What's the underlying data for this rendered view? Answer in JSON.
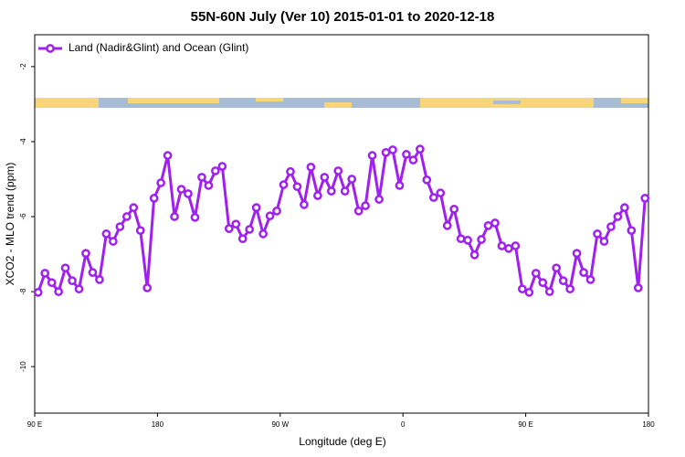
{
  "chart_data": {
    "type": "line",
    "title": "55N-60N July (Ver 10)   2015-01-01 to 2020-12-18",
    "x_label": "Longitude (deg E)",
    "y_label": "XCO2 - MLO trend (ppm)",
    "x": [
      92.5,
      97.5,
      102.5,
      107.5,
      112.5,
      117.5,
      122.5,
      127.5,
      132.5,
      137.5,
      142.5,
      147.5,
      152.5,
      157.5,
      162.5,
      167.5,
      172.5,
      177.5,
      182.5,
      187.5,
      192.5,
      197.5,
      202.5,
      207.5,
      212.5,
      217.5,
      222.5,
      227.5,
      232.5,
      237.5,
      242.5,
      247.5,
      252.5,
      257.5,
      262.5,
      267.5,
      272.5,
      277.5,
      282.5,
      287.5,
      292.5,
      297.5,
      302.5,
      307.5,
      312.5,
      317.5,
      322.5,
      327.5,
      332.5,
      337.5,
      342.5,
      347.5,
      352.5,
      357.5,
      362.5,
      367.5,
      372.5,
      377.5,
      382.5,
      387.5,
      392.5,
      397.5,
      402.5,
      407.5,
      412.5,
      417.5,
      422.5,
      427.5,
      432.5,
      437.5,
      442.5,
      447.5,
      452.5,
      457.5,
      462.5,
      467.5,
      472.5,
      477.5,
      482.5,
      487.5,
      492.5,
      497.5,
      502.5,
      507.5,
      512.5,
      517.5,
      522.5,
      527.5,
      532.5,
      537.5
    ],
    "series": [
      {
        "name": "Land (Nadir&Glint) and Ocean (Glint)",
        "color": "#a020f0",
        "values": [
          -8.02,
          -7.51,
          -7.76,
          -8.0,
          -7.37,
          -7.71,
          -7.93,
          -6.98,
          -7.49,
          -7.68,
          -6.46,
          -6.66,
          -6.27,
          -6.0,
          -5.76,
          -6.37,
          -7.9,
          -5.51,
          -5.1,
          -4.37,
          -6.0,
          -5.27,
          -5.39,
          -6.02,
          -4.95,
          -5.17,
          -4.78,
          -4.66,
          -6.32,
          -6.2,
          -6.59,
          -6.34,
          -5.76,
          -6.46,
          -5.98,
          -5.85,
          -5.15,
          -4.8,
          -5.2,
          -5.68,
          -4.68,
          -5.44,
          -4.95,
          -5.32,
          -4.78,
          -5.32,
          -5.0,
          -5.85,
          -5.71,
          -4.37,
          -5.54,
          -4.29,
          -4.22,
          -5.17,
          -4.34,
          -4.49,
          -4.2,
          -5.02,
          -5.49,
          -5.37,
          -6.24,
          -5.8,
          -6.59,
          -6.63,
          -7.02,
          -6.61,
          -6.24,
          -6.17,
          -6.78,
          -6.85,
          -6.78,
          -7.93,
          -8.02,
          -7.51,
          -7.76,
          -8.0,
          -7.37,
          -7.71,
          -7.93,
          -6.98,
          -7.49,
          -7.68,
          -6.46,
          -6.66,
          -6.27,
          -6.0,
          -5.76,
          -6.37,
          -7.9,
          -5.51
        ]
      }
    ],
    "xlim": [
      90,
      540
    ],
    "xticks": [
      {
        "value": 90,
        "label": "90 E"
      },
      {
        "value": 180,
        "label": "180"
      },
      {
        "value": 270,
        "label": "90 W"
      },
      {
        "value": 360,
        "label": "0"
      },
      {
        "value": 450,
        "label": "90 E"
      },
      {
        "value": 540,
        "label": "180"
      }
    ],
    "ylim": [
      -11.24,
      -1.15
    ],
    "yticks": [
      -10,
      -8,
      -6,
      -4,
      -2
    ],
    "legend": "top-left"
  }
}
